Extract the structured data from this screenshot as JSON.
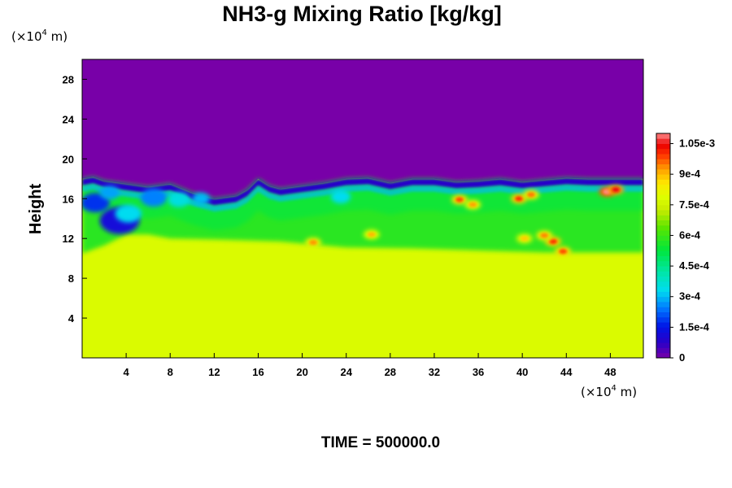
{
  "chart_data": {
    "type": "heatmap",
    "title": "NH3-g Mixing Ratio [kg/kg]",
    "ylabel": "Height",
    "x_unit": {
      "prefix": "(×10",
      "exp": "4",
      "suffix": " m)"
    },
    "y_unit": {
      "prefix": "(×10",
      "exp": "4",
      "suffix": " m)"
    },
    "xlim": [
      0,
      51
    ],
    "ylim": [
      0,
      30
    ],
    "x_ticks": [
      4,
      8,
      12,
      16,
      20,
      24,
      28,
      32,
      36,
      40,
      44,
      48
    ],
    "x_tick_labels": [
      "4",
      "8",
      "12",
      "16",
      "20",
      "24",
      "28",
      "32",
      "36",
      "40",
      "44",
      "48"
    ],
    "y_ticks": [
      4,
      8,
      12,
      16,
      20,
      24,
      28
    ],
    "y_tick_labels": [
      "4",
      "8",
      "12",
      "16",
      "20",
      "24",
      "28"
    ],
    "colorbar": {
      "range": [
        0,
        0.0011
      ],
      "ticks": [
        0,
        0.00015,
        0.0003,
        0.00045,
        0.0006,
        0.00075,
        0.0009,
        0.00105
      ],
      "tick_labels": [
        "0",
        "1.5e-4",
        "3e-4",
        "4.5e-4",
        "6e-4",
        "7.5e-4",
        "9e-4",
        "1.05e-3"
      ]
    },
    "field_description": {
      "upper_region_value": 0.0,
      "lower_region_value": 0.00078,
      "interface_height": [
        {
          "x": 0,
          "y": 18.0
        },
        {
          "x": 1,
          "y": 18.2
        },
        {
          "x": 2,
          "y": 17.8
        },
        {
          "x": 4,
          "y": 17.5
        },
        {
          "x": 6,
          "y": 17.2
        },
        {
          "x": 8,
          "y": 17.5
        },
        {
          "x": 10,
          "y": 16.6
        },
        {
          "x": 12,
          "y": 16.0
        },
        {
          "x": 14,
          "y": 16.3
        },
        {
          "x": 15,
          "y": 16.9
        },
        {
          "x": 16,
          "y": 18.0
        },
        {
          "x": 17,
          "y": 17.3
        },
        {
          "x": 18,
          "y": 17.0
        },
        {
          "x": 20,
          "y": 17.3
        },
        {
          "x": 22,
          "y": 17.6
        },
        {
          "x": 24,
          "y": 18.0
        },
        {
          "x": 26,
          "y": 18.1
        },
        {
          "x": 28,
          "y": 17.6
        },
        {
          "x": 30,
          "y": 18.0
        },
        {
          "x": 32,
          "y": 18.0
        },
        {
          "x": 34,
          "y": 17.7
        },
        {
          "x": 36,
          "y": 17.8
        },
        {
          "x": 38,
          "y": 18.0
        },
        {
          "x": 40,
          "y": 17.7
        },
        {
          "x": 42,
          "y": 17.9
        },
        {
          "x": 44,
          "y": 18.1
        },
        {
          "x": 46,
          "y": 18.0
        },
        {
          "x": 48,
          "y": 18.0
        },
        {
          "x": 51,
          "y": 18.0
        }
      ],
      "bulk_top_height": [
        {
          "x": 0,
          "y": 10.5
        },
        {
          "x": 2,
          "y": 11.3
        },
        {
          "x": 4,
          "y": 12.4
        },
        {
          "x": 6,
          "y": 12.4
        },
        {
          "x": 8,
          "y": 12.0
        },
        {
          "x": 12,
          "y": 11.9
        },
        {
          "x": 18,
          "y": 11.7
        },
        {
          "x": 24,
          "y": 11.1
        },
        {
          "x": 30,
          "y": 11.0
        },
        {
          "x": 36,
          "y": 10.8
        },
        {
          "x": 42,
          "y": 10.6
        },
        {
          "x": 48,
          "y": 10.6
        },
        {
          "x": 51,
          "y": 10.6
        }
      ],
      "hot_spots": [
        {
          "x": 34.3,
          "y": 15.9,
          "value": 0.00098
        },
        {
          "x": 35.5,
          "y": 15.4,
          "value": 0.00092
        },
        {
          "x": 39.7,
          "y": 16.0,
          "value": 0.001
        },
        {
          "x": 40.8,
          "y": 16.4,
          "value": 0.00095
        },
        {
          "x": 47.7,
          "y": 16.7,
          "value": 0.0011
        },
        {
          "x": 48.5,
          "y": 16.9,
          "value": 0.00105
        },
        {
          "x": 42.8,
          "y": 11.7,
          "value": 0.001
        },
        {
          "x": 43.7,
          "y": 10.7,
          "value": 0.00098
        },
        {
          "x": 42.0,
          "y": 12.3,
          "value": 0.00094
        },
        {
          "x": 26.3,
          "y": 12.4,
          "value": 0.0009
        },
        {
          "x": 21.0,
          "y": 11.6,
          "value": 0.00093
        },
        {
          "x": 40.2,
          "y": 12.0,
          "value": 0.00088
        }
      ]
    }
  },
  "footer": {
    "time_text": "TIME = 500000.0"
  }
}
